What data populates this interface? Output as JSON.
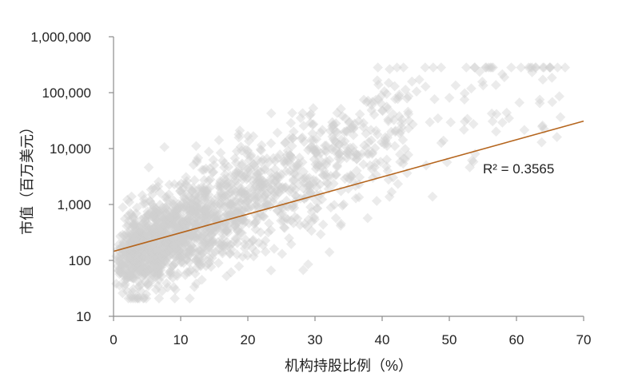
{
  "chart_data": {
    "type": "scatter",
    "title": "",
    "xlabel": "机构持股比例（%）",
    "ylabel": "市值（百万美元）",
    "x_ticks": [
      "0",
      "10",
      "20",
      "30",
      "40",
      "50",
      "60",
      "70"
    ],
    "y_ticks": [
      "10",
      "100",
      "1,000",
      "10,000",
      "100,000",
      "1,000,000"
    ],
    "xlim": [
      0,
      70
    ],
    "ylim": [
      10,
      1000000
    ],
    "y_scale": "log",
    "grid": false,
    "legend": "none",
    "marker": "diamond",
    "point_color": "#cfcfcf",
    "trendline": {
      "type": "exponential",
      "color": "#b5651d",
      "from": {
        "x": 0,
        "y": 145
      },
      "to": {
        "x": 70,
        "y": 31000
      },
      "label": "R² = 0.3565"
    },
    "point_count_estimate": 1800,
    "distribution_note": "points densest for x 0–20 and y 40–3000; spread widens with x; sparse points up to x 67"
  }
}
